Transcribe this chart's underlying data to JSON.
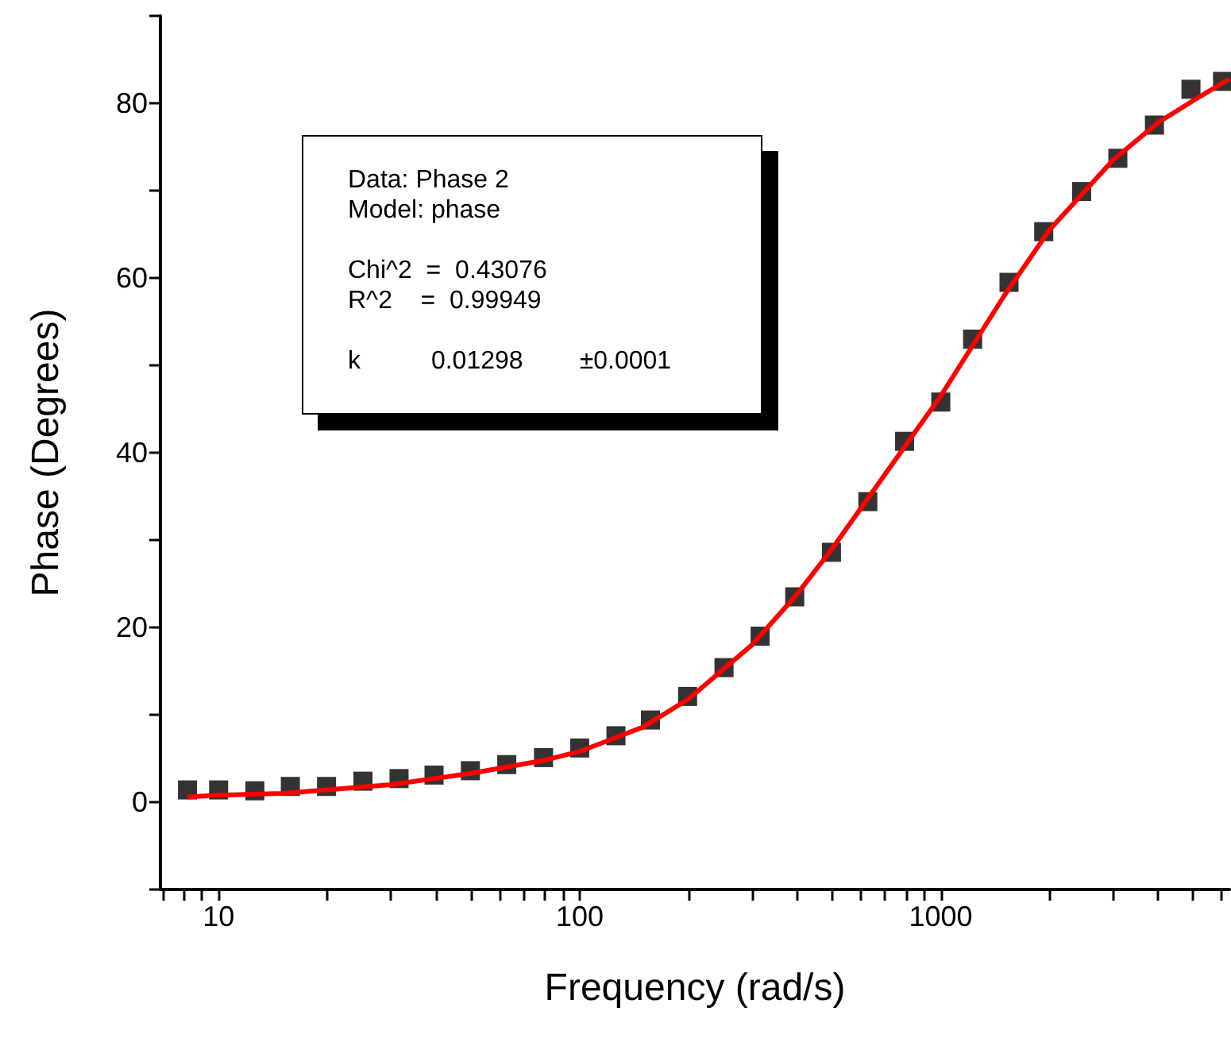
{
  "chart_data": {
    "type": "scatter",
    "xlabel": "Frequency (rad/s)",
    "ylabel": "Phase (Degrees)",
    "log": "x",
    "xlim": [
      6.9,
      6300
    ],
    "ylim": [
      -10,
      90
    ],
    "xticks": [
      {
        "value": 7,
        "label": null
      },
      {
        "value": 8,
        "label": null
      },
      {
        "value": 9,
        "label": null
      },
      10,
      {
        "value": 20,
        "label": null
      },
      {
        "value": 30,
        "label": null
      },
      {
        "value": 40,
        "label": null
      },
      {
        "value": 50,
        "label": null
      },
      {
        "value": 60,
        "label": null
      },
      {
        "value": 70,
        "label": null
      },
      {
        "value": 80,
        "label": null
      },
      {
        "value": 90,
        "label": null
      },
      100,
      {
        "value": 200,
        "label": null
      },
      {
        "value": 300,
        "label": null
      },
      {
        "value": 400,
        "label": null
      },
      {
        "value": 500,
        "label": null
      },
      {
        "value": 600,
        "label": null
      },
      {
        "value": 700,
        "label": null
      },
      {
        "value": 800,
        "label": null
      },
      {
        "value": 900,
        "label": null
      },
      1000,
      {
        "value": 2000,
        "label": null
      },
      {
        "value": 3000,
        "label": null
      },
      {
        "value": 4000,
        "label": null
      },
      {
        "value": 5000,
        "label": null
      },
      {
        "value": 6000,
        "label": null
      }
    ],
    "yticks": [
      {
        "value": -10,
        "label": null
      },
      0,
      {
        "value": 10,
        "label": null
      },
      20,
      {
        "value": 30,
        "label": null
      },
      40,
      {
        "value": 50,
        "label": null
      },
      60,
      {
        "value": 70,
        "label": null
      },
      80,
      {
        "value": 90,
        "label": null
      }
    ],
    "annotations": [
      "Data: Phase 2",
      "Model: phase",
      "Chi^2  =  0.43076",
      "R^2    =  0.99949",
      "k          0.01298        ±0.0001"
    ],
    "series": [
      {
        "marker": "square",
        "color": "#000000",
        "x": [
          8.2,
          10,
          12.6,
          15.8,
          19.9,
          25.1,
          31.6,
          39.5,
          49.8,
          62.8,
          79.4,
          100,
          126,
          157,
          199,
          251,
          316,
          394,
          498,
          628,
          794,
          1000,
          1225,
          1545,
          1928,
          2455,
          3093,
          3906,
          4930,
          6030
        ],
        "values": [
          1.4,
          1.4,
          1.3,
          1.8,
          1.8,
          2.4,
          2.7,
          3.1,
          3.6,
          4.3,
          5.1,
          6.2,
          7.6,
          9.4,
          12.1,
          15.4,
          19.0,
          23.5,
          28.6,
          34.4,
          41.3,
          45.8,
          53.0,
          59.5,
          65.3,
          69.9,
          73.7,
          77.5,
          81.6,
          82.5
        ]
      },
      {
        "type": "line",
        "marker": "none",
        "color": "#ff0000",
        "x": [
          8.2,
          10,
          15,
          20,
          30,
          50,
          80,
          100,
          150,
          200,
          300,
          400,
          500,
          700,
          1000,
          1500,
          2000,
          3000,
          4000,
          5000,
          6300
        ],
        "values": [
          0.6,
          0.8,
          1.0,
          1.4,
          2.0,
          3.3,
          4.8,
          5.8,
          8.6,
          11.8,
          18,
          23.8,
          29,
          37.5,
          46.5,
          58,
          65.5,
          73.5,
          77.8,
          80.3,
          82.8
        ]
      }
    ]
  }
}
